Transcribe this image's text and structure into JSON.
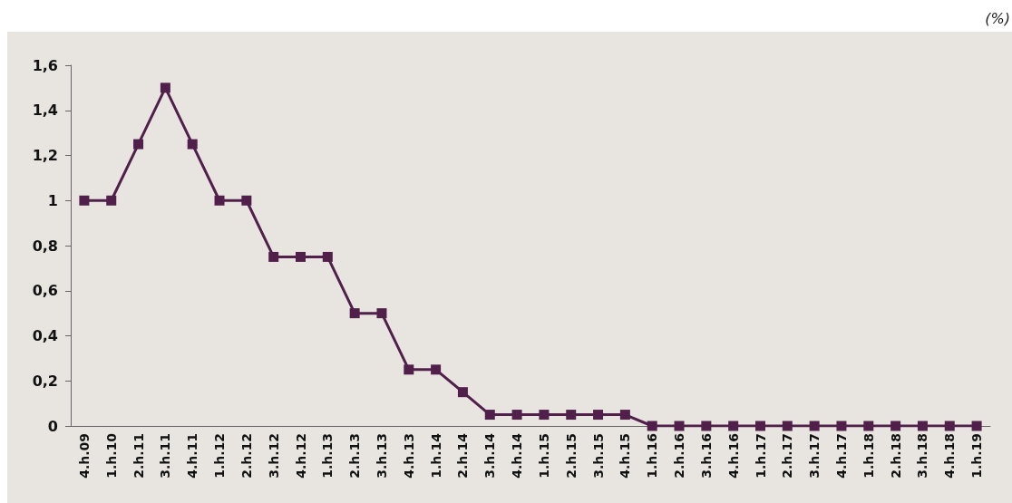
{
  "chart_data": {
    "type": "line",
    "ylabel": "(%)",
    "categories": [
      "4.h.09",
      "1.h.10",
      "2.h.11",
      "3.h.11",
      "4.h.11",
      "1.h.12",
      "2.h.12",
      "3.h.12",
      "4.h.12",
      "1.h.13",
      "2.h.13",
      "3.h.13",
      "4.h.13",
      "1.h.14",
      "2.h.14",
      "3.h.14",
      "4.h.14",
      "1.h.15",
      "2.h.15",
      "3.h.15",
      "4.h.15",
      "1.h.16",
      "2.h.16",
      "3.h.16",
      "4.h.16",
      "1.h.17",
      "2.h.17",
      "3.h.17",
      "4.h.17",
      "1.h.18",
      "2.h.18",
      "3.h.18",
      "4.h.18",
      "1.h.19"
    ],
    "series": [
      {
        "color": "#50204b",
        "values": [
          1,
          1,
          1.25,
          1.5,
          1.25,
          1,
          1,
          0.75,
          0.75,
          0.75,
          0.5,
          0.5,
          0.25,
          0.25,
          0.15,
          0.05,
          0.05,
          0.05,
          0.05,
          0.05,
          0.05,
          0,
          0,
          0,
          0,
          0,
          0,
          0,
          0,
          0,
          0,
          0,
          0,
          0
        ]
      }
    ],
    "ylim": [
      0,
      1.6
    ],
    "yticks": [
      0,
      {
        "value": 0.2,
        "label": "0,2"
      },
      {
        "value": 0.4,
        "label": "0,4"
      },
      {
        "value": 0.6,
        "label": "0,6"
      },
      {
        "value": 0.8,
        "label": "0,8"
      },
      1,
      {
        "value": 1.2,
        "label": "1,2"
      },
      {
        "value": 1.4,
        "label": "1,4"
      },
      {
        "value": 1.6,
        "label": "1,6"
      }
    ],
    "grid": false,
    "marker": "square",
    "line_style": "solid"
  }
}
